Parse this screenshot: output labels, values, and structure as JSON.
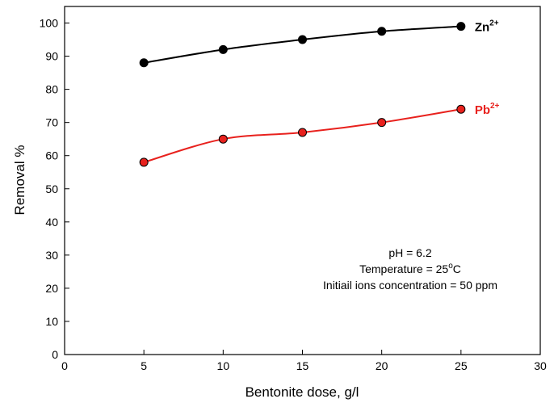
{
  "chart_data": {
    "type": "line",
    "xlabel": "Bentonite dose, g/l",
    "ylabel": "Removal %",
    "xlim": [
      0,
      30
    ],
    "ylim": [
      0,
      105
    ],
    "x_ticks": [
      0,
      5,
      10,
      15,
      20,
      25,
      30
    ],
    "y_ticks": [
      0,
      10,
      20,
      30,
      40,
      50,
      60,
      70,
      80,
      90,
      100
    ],
    "grid": false,
    "x": [
      5,
      10,
      15,
      20,
      25
    ],
    "series": [
      {
        "name": "Zn",
        "name_sup": "2+",
        "values": [
          88,
          92,
          95,
          97.5,
          99
        ],
        "color": "#000000",
        "marker_fill": "#000000"
      },
      {
        "name": "Pb",
        "name_sup": "2+",
        "values": [
          58,
          65,
          67,
          70,
          74
        ],
        "color": "#e8211d",
        "marker_fill": "#e8211d"
      }
    ],
    "annotations": {
      "ph": "pH = 6.2",
      "temperature_prefix": "Temperature = 25",
      "temperature_sup": "o",
      "temperature_suffix": "C",
      "concentration": "Initiail ions concentration = 50 ppm"
    }
  }
}
